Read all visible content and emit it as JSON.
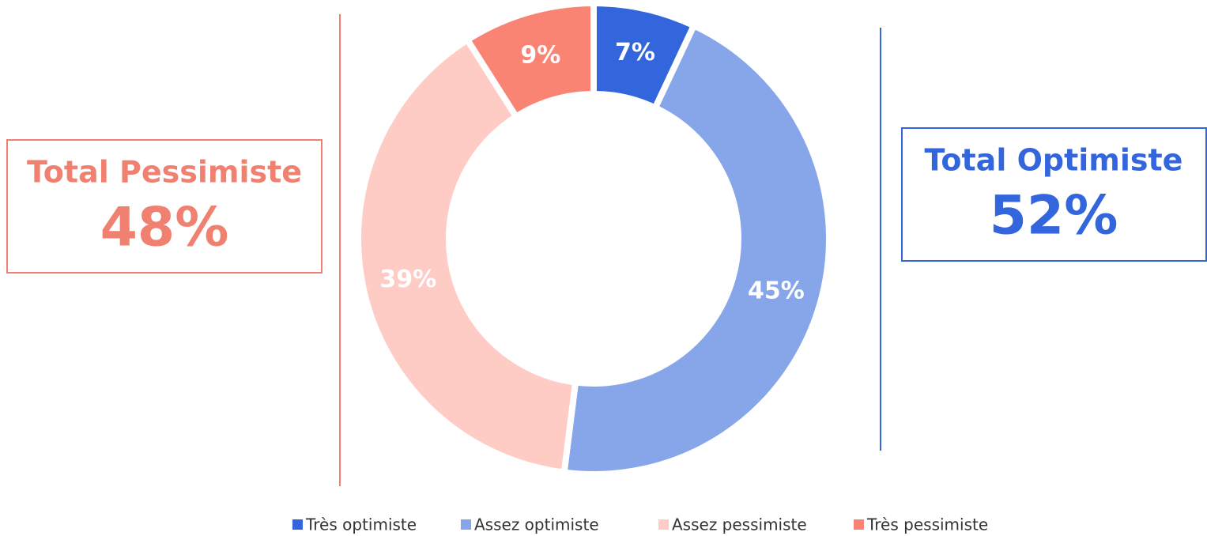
{
  "chart_data": {
    "type": "donut",
    "categories": [
      "Très optimiste",
      "Assez optimiste",
      "Assez pessimiste",
      "Très pessimiste"
    ],
    "values": [
      7,
      45,
      39,
      9
    ],
    "value_labels": [
      "7%",
      "45%",
      "39%",
      "9%"
    ],
    "colors": [
      "#3366dd",
      "#87a6ea",
      "#fecbc5",
      "#fa8474"
    ],
    "legend": "bottom",
    "annotations": [
      {
        "title": "Total Pessimiste",
        "text": "48%",
        "color": "#f08070"
      },
      {
        "title": "Total Optimiste",
        "text": "52%",
        "color": "#3366dd"
      }
    ]
  }
}
